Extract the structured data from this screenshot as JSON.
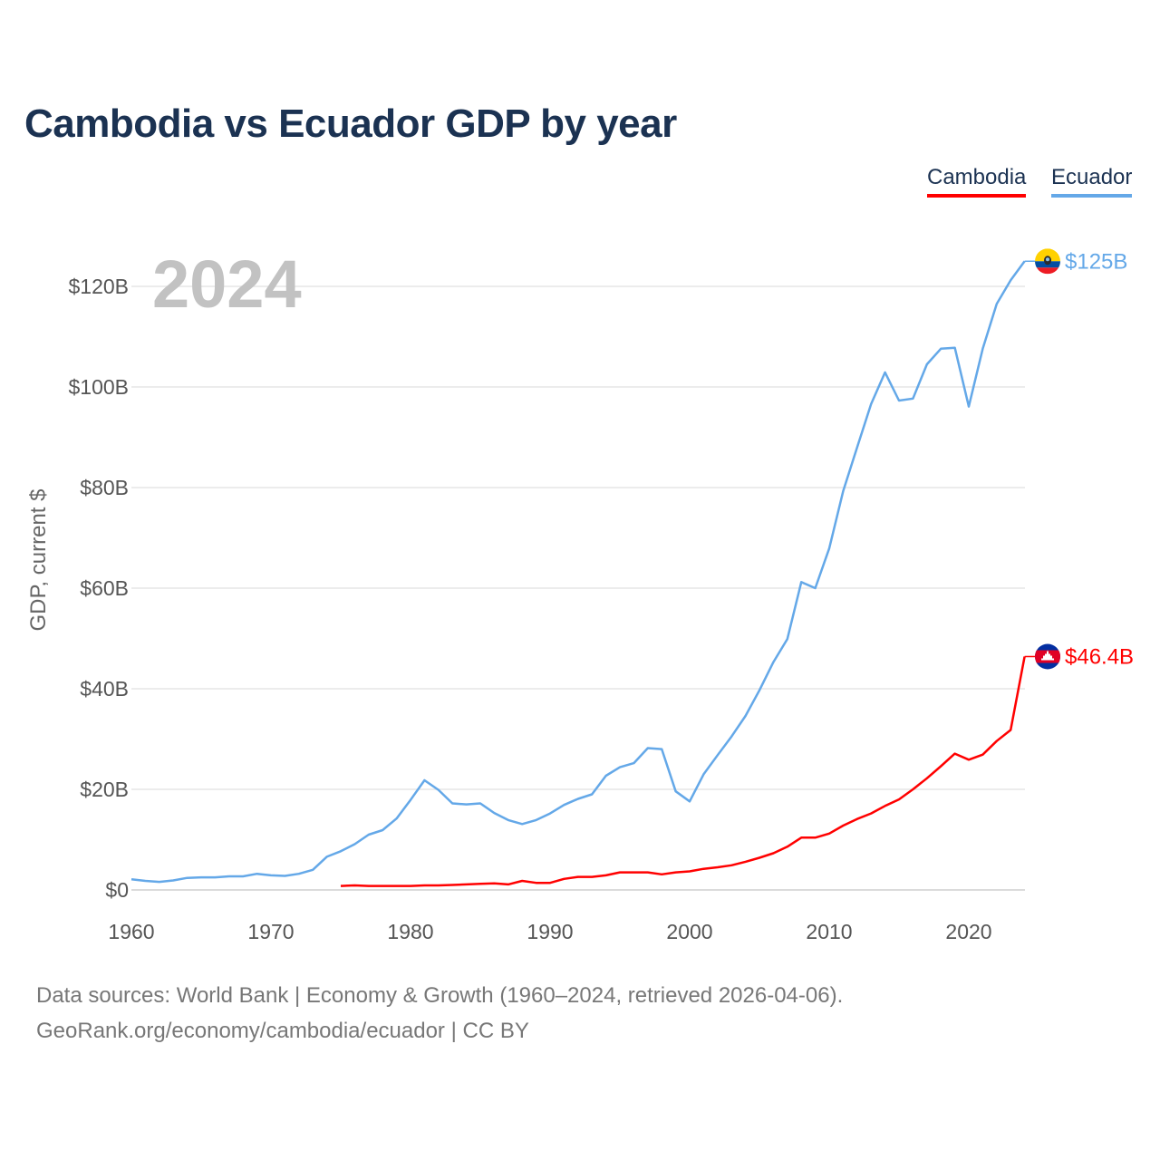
{
  "chart_data": {
    "type": "line",
    "title": "Cambodia vs Ecuador GDP by year",
    "ylabel": "GDP, current $",
    "xlabel": "",
    "year_label": "2024",
    "xlim": [
      1960,
      2024
    ],
    "ylim": [
      0,
      130
    ],
    "x_ticks": [
      "1960",
      "1970",
      "1980",
      "1990",
      "2000",
      "2010",
      "2020"
    ],
    "y_ticks": [
      {
        "value": 0,
        "label": "$0"
      },
      {
        "value": 20,
        "label": "$20B"
      },
      {
        "value": 40,
        "label": "$40B"
      },
      {
        "value": 60,
        "label": "$60B"
      },
      {
        "value": 80,
        "label": "$80B"
      },
      {
        "value": 100,
        "label": "$100B"
      },
      {
        "value": 120,
        "label": "$120B"
      }
    ],
    "grid": true,
    "legend_position": "top-right",
    "series": [
      {
        "name": "Cambodia",
        "color": "#ff0000",
        "end_label": "$46.4B",
        "x": [
          1975,
          1976,
          1977,
          1978,
          1979,
          1980,
          1981,
          1982,
          1983,
          1984,
          1985,
          1986,
          1987,
          1988,
          1989,
          1990,
          1991,
          1992,
          1993,
          1994,
          1995,
          1996,
          1997,
          1998,
          1999,
          2000,
          2001,
          2002,
          2003,
          2004,
          2005,
          2006,
          2007,
          2008,
          2009,
          2010,
          2011,
          2012,
          2013,
          2014,
          2015,
          2016,
          2017,
          2018,
          2019,
          2020,
          2021,
          2022,
          2023,
          2024
        ],
        "values": [
          0.8,
          0.9,
          0.8,
          0.8,
          0.8,
          0.8,
          0.9,
          0.9,
          1.0,
          1.1,
          1.2,
          1.3,
          1.1,
          1.8,
          1.4,
          1.4,
          2.2,
          2.6,
          2.6,
          2.9,
          3.5,
          3.5,
          3.5,
          3.1,
          3.5,
          3.7,
          4.2,
          4.5,
          4.9,
          5.6,
          6.4,
          7.3,
          8.6,
          10.4,
          10.4,
          11.2,
          12.8,
          14.1,
          15.2,
          16.7,
          18.0,
          20.0,
          22.2,
          24.6,
          27.1,
          25.9,
          26.9,
          29.6,
          31.8,
          46.4
        ]
      },
      {
        "name": "Ecuador",
        "color": "#64a8e8",
        "end_label": "$125B",
        "x": [
          1960,
          1961,
          1962,
          1963,
          1964,
          1965,
          1966,
          1967,
          1968,
          1969,
          1970,
          1971,
          1972,
          1973,
          1974,
          1975,
          1976,
          1977,
          1978,
          1979,
          1980,
          1981,
          1982,
          1983,
          1984,
          1985,
          1986,
          1987,
          1988,
          1989,
          1990,
          1991,
          1992,
          1993,
          1994,
          1995,
          1996,
          1997,
          1998,
          1999,
          2000,
          2001,
          2002,
          2003,
          2004,
          2005,
          2006,
          2007,
          2008,
          2009,
          2010,
          2011,
          2012,
          2013,
          2014,
          2015,
          2016,
          2017,
          2018,
          2019,
          2020,
          2021,
          2022,
          2023,
          2024
        ],
        "values": [
          2.1,
          1.8,
          1.6,
          1.9,
          2.4,
          2.5,
          2.5,
          2.7,
          2.7,
          3.2,
          2.9,
          2.8,
          3.2,
          4.0,
          6.6,
          7.7,
          9.1,
          11.0,
          11.9,
          14.2,
          17.9,
          21.8,
          19.9,
          17.2,
          17.0,
          17.2,
          15.3,
          13.9,
          13.1,
          13.9,
          15.2,
          16.9,
          18.1,
          19.0,
          22.7,
          24.4,
          25.2,
          28.2,
          28.0,
          19.6,
          17.6,
          23.0,
          26.8,
          30.5,
          34.6,
          39.7,
          45.3,
          49.9,
          61.2,
          60.0,
          67.9,
          79.3,
          88.0,
          96.6,
          102.9,
          97.3,
          97.7,
          104.5,
          107.6,
          107.8,
          96.1,
          107.6,
          116.5,
          121.2,
          125.0
        ]
      }
    ]
  },
  "legend": {
    "cambodia": "Cambodia",
    "ecuador": "Ecuador"
  },
  "footer": {
    "line1": "Data sources: World Bank | Economy & Growth (1960–2024, retrieved 2026-04-06).",
    "line2": "GeoRank.org/economy/cambodia/ecuador | CC BY"
  },
  "colors": {
    "title": "#1b3252",
    "cambodia": "#ff0000",
    "ecuador": "#64a8e8",
    "grid": "#e3e3e3",
    "axis_text": "#555555",
    "year_watermark": "#c2c2c2"
  },
  "icons": {
    "cambodia_marker": "cambodia-flag-icon",
    "ecuador_marker": "ecuador-flag-icon"
  }
}
